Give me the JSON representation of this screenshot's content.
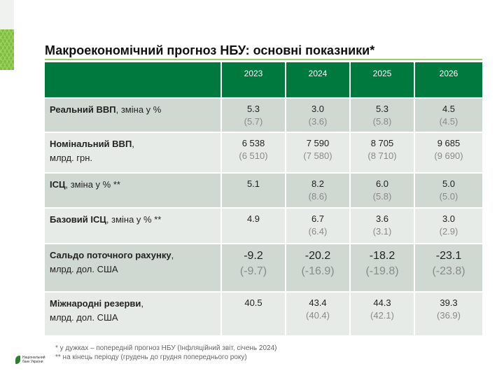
{
  "title": "Макроекономічний прогноз НБУ: основні показники*",
  "colors": {
    "header": "#00793f",
    "accent_line": "#9ccc65",
    "row_dark": "#cfd9d2",
    "row_light": "#e6ebe7"
  },
  "table": {
    "columns": [
      "",
      "2023",
      "2024",
      "2025",
      "2026"
    ],
    "rows": [
      {
        "label_bold": "Реальний ВВП",
        "label_rest": ", зміна у %",
        "label_line2": "",
        "values": [
          "5.3",
          "3.0",
          "5.3",
          "4.5"
        ],
        "previous": [
          "(5.7)",
          "(3.6)",
          "(5.8)",
          "(4.5)"
        ]
      },
      {
        "label_bold": "Номінальний ВВП",
        "label_rest": ",",
        "label_line2": "млрд. грн.",
        "values": [
          "6 538",
          "7 590",
          "8 705",
          "9 685"
        ],
        "previous": [
          "(6 510)",
          "(7 580)",
          "(8 710)",
          "(9 690)"
        ]
      },
      {
        "label_bold": "ІСЦ",
        "label_rest": ", зміна у % **",
        "label_line2": "",
        "values": [
          "5.1",
          "8.2",
          "6.0",
          "5.0"
        ],
        "previous": [
          "",
          "(8.6)",
          "(5.8)",
          "(5.0)"
        ]
      },
      {
        "label_bold": "Базовий ІСЦ",
        "label_rest": ", зміна у % **",
        "label_line2": "",
        "values": [
          "4.9",
          "6.7",
          "3.6",
          "3.0"
        ],
        "previous": [
          "",
          "(6.4)",
          "(3.1)",
          "(2.9)"
        ]
      },
      {
        "label_bold": "Сальдо поточного рахунку",
        "label_rest": ",",
        "label_line2": "млрд. дол. США",
        "values": [
          "-9.2",
          "-20.2",
          "-18.2",
          "-23.1"
        ],
        "previous": [
          "(-9.7)",
          "(-16.9)",
          "(-19.8)",
          "(-23.8)"
        ]
      },
      {
        "label_bold": "Міжнародні резерви",
        "label_rest": ",",
        "label_line2": "млрд. дол. США",
        "values": [
          "40.5",
          "43.4",
          "44.3",
          "39.3"
        ],
        "previous": [
          "",
          "(40.4)",
          "(42.1)",
          "(36.9)"
        ]
      }
    ]
  },
  "footnotes": [
    "* у дужках – попередній прогноз НБУ (Інфляційний звіт, січень 2024)",
    "** на кінець періоду (грудень до грудня попереднього року)"
  ],
  "logo": {
    "line1": "Національний",
    "line2": "банк України"
  }
}
